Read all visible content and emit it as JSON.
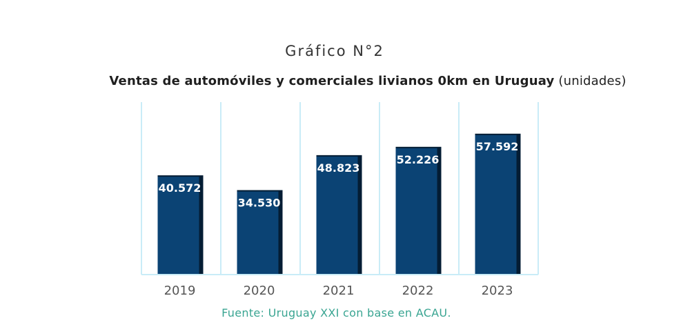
{
  "header": {
    "title": "Gráfico N°2",
    "subtitle_main": "Ventas de automóviles y comerciales livianos 0km en Uruguay",
    "subtitle_unit": "(unidades)"
  },
  "footer": {
    "source": "Fuente: Uruguay XXI con base en ACAU."
  },
  "colors": {
    "bar": "#0b4374",
    "bar_shadow": "#041d34",
    "column_border": "#c9ecf7"
  },
  "chart_data": {
    "type": "bar",
    "title": "Ventas de automóviles y comerciales livianos 0km en Uruguay",
    "ylabel": "",
    "xlabel": "",
    "categories": [
      "2019",
      "2020",
      "2021",
      "2022",
      "2023"
    ],
    "values": [
      40572,
      34530,
      48823,
      52226,
      57592
    ],
    "value_labels": [
      "40.572",
      "34.530",
      "48.823",
      "52.226",
      "57.592"
    ],
    "ylim": [
      0,
      66000
    ],
    "grid": false,
    "legend": "none"
  }
}
